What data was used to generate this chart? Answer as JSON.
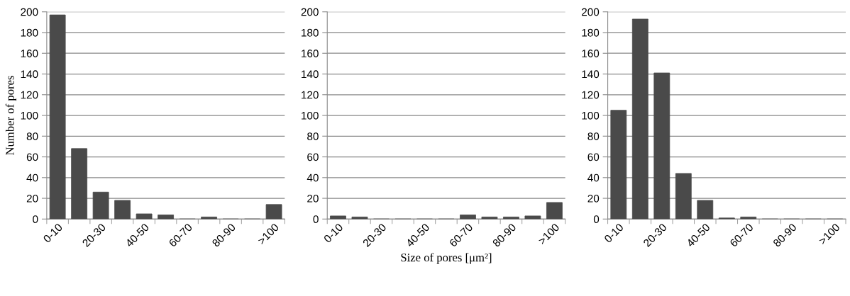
{
  "chart_data": [
    {
      "type": "bar",
      "categories": [
        "0-10",
        null,
        "20-30",
        null,
        "40-50",
        null,
        "60-70",
        null,
        "80-90",
        null,
        ">100"
      ],
      "values": [
        197,
        68,
        26,
        18,
        5,
        4,
        0,
        2,
        0,
        0,
        14
      ],
      "color": "#4a4a4a",
      "ylabel": "Number of pores",
      "ylim": [
        0,
        200
      ],
      "yticks": [
        0,
        20,
        40,
        60,
        80,
        100,
        120,
        140,
        160,
        180,
        200
      ],
      "grid": "y",
      "legend": false
    },
    {
      "type": "bar",
      "categories": [
        "0-10",
        null,
        "20-30",
        null,
        "40-50",
        null,
        "60-70",
        null,
        "80-90",
        null,
        ">100"
      ],
      "values": [
        3,
        2,
        0,
        0,
        0,
        0,
        4,
        2,
        2,
        3,
        16
      ],
      "color": "#4a4a4a",
      "xlabel": "Size of pores [μm²]",
      "ylim": [
        0,
        200
      ],
      "yticks": [
        0,
        20,
        40,
        60,
        80,
        100,
        120,
        140,
        160,
        180,
        200
      ],
      "grid": "y",
      "legend": false
    },
    {
      "type": "bar",
      "categories": [
        "0-10",
        null,
        "20-30",
        null,
        "40-50",
        null,
        "60-70",
        null,
        "80-90",
        null,
        ">100"
      ],
      "values": [
        105,
        193,
        141,
        44,
        18,
        1,
        2,
        0,
        0,
        0,
        0
      ],
      "color": "#4a4a4a",
      "ylim": [
        0,
        200
      ],
      "yticks": [
        0,
        20,
        40,
        60,
        80,
        100,
        120,
        140,
        160,
        180,
        200
      ],
      "grid": "y",
      "legend": false
    }
  ]
}
